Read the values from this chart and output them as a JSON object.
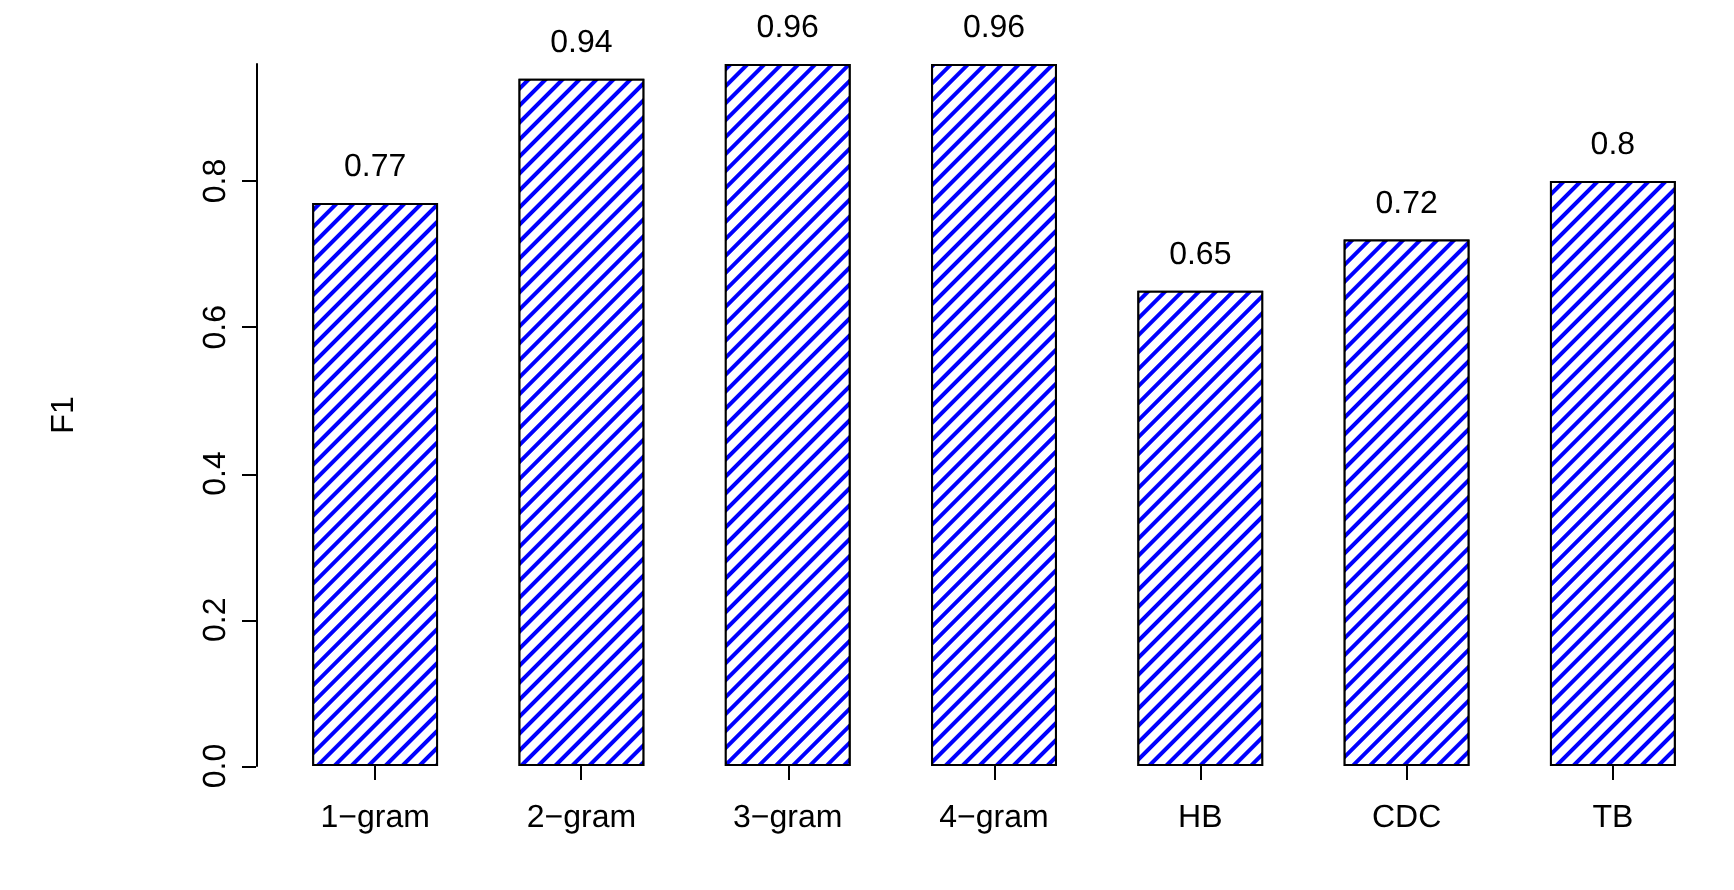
{
  "chart_data": {
    "type": "bar",
    "ylabel": "F1",
    "categories": [
      "1−gram",
      "2−gram",
      "3−gram",
      "4−gram",
      "HB",
      "CDC",
      "TB"
    ],
    "values": [
      0.77,
      0.94,
      0.96,
      0.96,
      0.65,
      0.72,
      0.8
    ],
    "color": "#0000ff",
    "ylim": [
      0,
      0.96
    ],
    "yticks": [
      {
        "value": 0,
        "label": "0.0"
      },
      0.2,
      0.4,
      0.6,
      0.8
    ],
    "value_labels": [
      "0.77",
      "0.94",
      "0.96",
      "0.96",
      "0.65",
      "0.72",
      "0.8"
    ],
    "grid": false
  }
}
